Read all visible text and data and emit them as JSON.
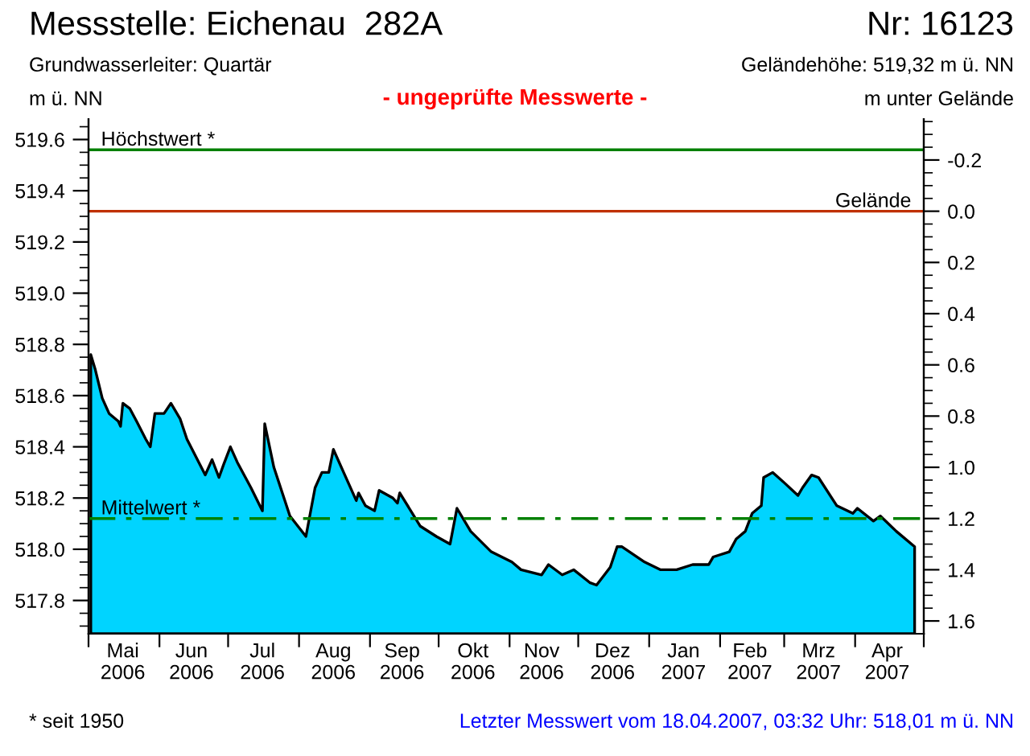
{
  "chart_data": {
    "type": "area",
    "title": "Messstelle: Eichenau  282A",
    "subtitle": "Grundwasserleiter: Quartär",
    "ylabel": "m ü. NN",
    "y2label": "m unter Gelände",
    "annotations": [
      "Nr: 16123",
      "Geländehöhe: 519,32 m ü. NN",
      "- ungeprüfte Messwerte -",
      "* seit 1950",
      "Letzter Messwert vom 18.04.2007, 03:32 Uhr: 518,01 m ü. NN"
    ],
    "x": [
      "2006-05-02",
      "2006-05-04",
      "2006-05-07",
      "2006-05-10",
      "2006-05-14",
      "2006-05-15",
      "2006-05-16",
      "2006-05-19",
      "2006-05-22",
      "2006-05-26",
      "2006-05-28",
      "2006-05-30",
      "2006-06-03",
      "2006-06-06",
      "2006-06-10",
      "2006-06-13",
      "2006-06-21",
      "2006-06-24",
      "2006-06-27",
      "2006-06-29",
      "2006-07-02",
      "2006-07-05",
      "2006-07-11",
      "2006-07-16",
      "2006-07-17",
      "2006-07-21",
      "2006-07-28",
      "2006-08-04",
      "2006-08-08",
      "2006-08-11",
      "2006-08-14",
      "2006-08-16",
      "2006-08-21",
      "2006-08-26",
      "2006-08-27",
      "2006-08-30",
      "2006-09-03",
      "2006-09-05",
      "2006-09-11",
      "2006-09-13",
      "2006-09-14",
      "2006-09-23",
      "2006-09-30",
      "2006-10-06",
      "2006-10-09",
      "2006-10-15",
      "2006-10-24",
      "2006-11-02",
      "2006-11-06",
      "2006-11-15",
      "2006-11-18",
      "2006-11-24",
      "2006-11-29",
      "2006-12-06",
      "2006-12-09",
      "2006-12-15",
      "2006-12-18",
      "2006-12-20",
      "2006-12-30",
      "2007-01-06",
      "2007-01-13",
      "2007-01-20",
      "2007-01-27",
      "2007-01-29",
      "2007-02-05",
      "2007-02-08",
      "2007-02-12",
      "2007-02-15",
      "2007-02-19",
      "2007-02-20",
      "2007-02-24",
      "2007-03-01",
      "2007-03-07",
      "2007-03-09",
      "2007-03-13",
      "2007-03-16",
      "2007-03-24",
      "2007-03-31",
      "2007-04-02",
      "2007-04-09",
      "2007-04-12",
      "2007-04-19",
      "2007-04-27"
    ],
    "series": [
      {
        "color": "#00d4ff",
        "values": [
          518.76,
          518.7,
          518.59,
          518.53,
          518.5,
          518.48,
          518.57,
          518.55,
          518.5,
          518.43,
          518.4,
          518.53,
          518.53,
          518.57,
          518.51,
          518.43,
          518.29,
          518.35,
          518.28,
          518.33,
          518.4,
          518.34,
          518.24,
          518.15,
          518.49,
          518.32,
          518.13,
          518.05,
          518.24,
          518.3,
          518.3,
          518.39,
          518.29,
          518.19,
          518.22,
          518.17,
          518.15,
          518.23,
          518.2,
          518.18,
          518.22,
          518.09,
          518.05,
          518.02,
          518.16,
          518.07,
          517.99,
          517.95,
          517.92,
          517.9,
          517.94,
          517.9,
          517.92,
          517.87,
          517.86,
          517.93,
          518.01,
          518.01,
          517.95,
          517.92,
          517.92,
          517.94,
          517.94,
          517.97,
          517.99,
          518.04,
          518.07,
          518.14,
          518.17,
          518.28,
          518.3,
          518.26,
          518.21,
          518.24,
          518.29,
          518.28,
          518.17,
          518.14,
          518.16,
          518.11,
          518.13,
          518.07,
          518.01
        ]
      }
    ],
    "xlim": [
      "2006-05-01",
      "2007-05-01"
    ],
    "xticks": [
      {
        "value": "2006-05-01",
        "label": null
      },
      {
        "value": "2006-05-16",
        "label": "Mai\n2006"
      },
      {
        "value": "2006-06-01",
        "label": null
      },
      {
        "value": "2006-06-15",
        "label": "Jun\n2006"
      },
      {
        "value": "2006-07-01",
        "label": null
      },
      {
        "value": "2006-07-16",
        "label": "Jul\n2006"
      },
      {
        "value": "2006-08-01",
        "label": null
      },
      {
        "value": "2006-08-16",
        "label": "Aug\n2006"
      },
      {
        "value": "2006-09-01",
        "label": null
      },
      {
        "value": "2006-09-15",
        "label": "Sep\n2006"
      },
      {
        "value": "2006-10-01",
        "label": null
      },
      {
        "value": "2006-10-16",
        "label": "Okt\n2006"
      },
      {
        "value": "2006-11-01",
        "label": null
      },
      {
        "value": "2006-11-15",
        "label": "Nov\n2006"
      },
      {
        "value": "2006-12-01",
        "label": null
      },
      {
        "value": "2006-12-16",
        "label": "Dez\n2006"
      },
      {
        "value": "2007-01-01",
        "label": null
      },
      {
        "value": "2007-01-16",
        "label": "Jan\n2007"
      },
      {
        "value": "2007-02-01",
        "label": null
      },
      {
        "value": "2007-02-14",
        "label": "Feb\n2007"
      },
      {
        "value": "2007-03-01",
        "label": null
      },
      {
        "value": "2007-03-16",
        "label": "Mrz\n2007"
      },
      {
        "value": "2007-04-01",
        "label": null
      },
      {
        "value": "2007-04-15",
        "label": "Apr\n2007"
      },
      {
        "value": "2007-05-01",
        "label": null
      }
    ],
    "ylim": [
      517.67,
      519.68
    ],
    "yticks": [
      517.8,
      {
        "value": 518.0,
        "label": "518.0"
      },
      518.2,
      518.4,
      518.6,
      518.8,
      {
        "value": 519.0,
        "label": "519.0"
      },
      519.2,
      519.4,
      519.6
    ],
    "y2lim": [
      1.65,
      -0.36
    ],
    "y2ticks": [
      -0.2,
      {
        "value": 0.0,
        "label": "0.0"
      },
      0.2,
      0.4,
      0.6,
      0.8,
      {
        "value": 1.0,
        "label": "1.0"
      },
      1.2,
      1.4,
      1.6
    ],
    "ref_lines": [
      {
        "axis": "y",
        "value": 519.56,
        "label": "Höchstwert *",
        "color": "#008000",
        "line_style": "solid"
      },
      {
        "axis": "y",
        "value": 519.32,
        "label": "Gelände",
        "color": "#c03000",
        "line_style": "solid"
      },
      {
        "axis": "y",
        "value": 518.12,
        "label": "Mittelwert *",
        "color": "#008000",
        "line_style": "dashdot"
      }
    ],
    "grid": false,
    "legend": false
  }
}
